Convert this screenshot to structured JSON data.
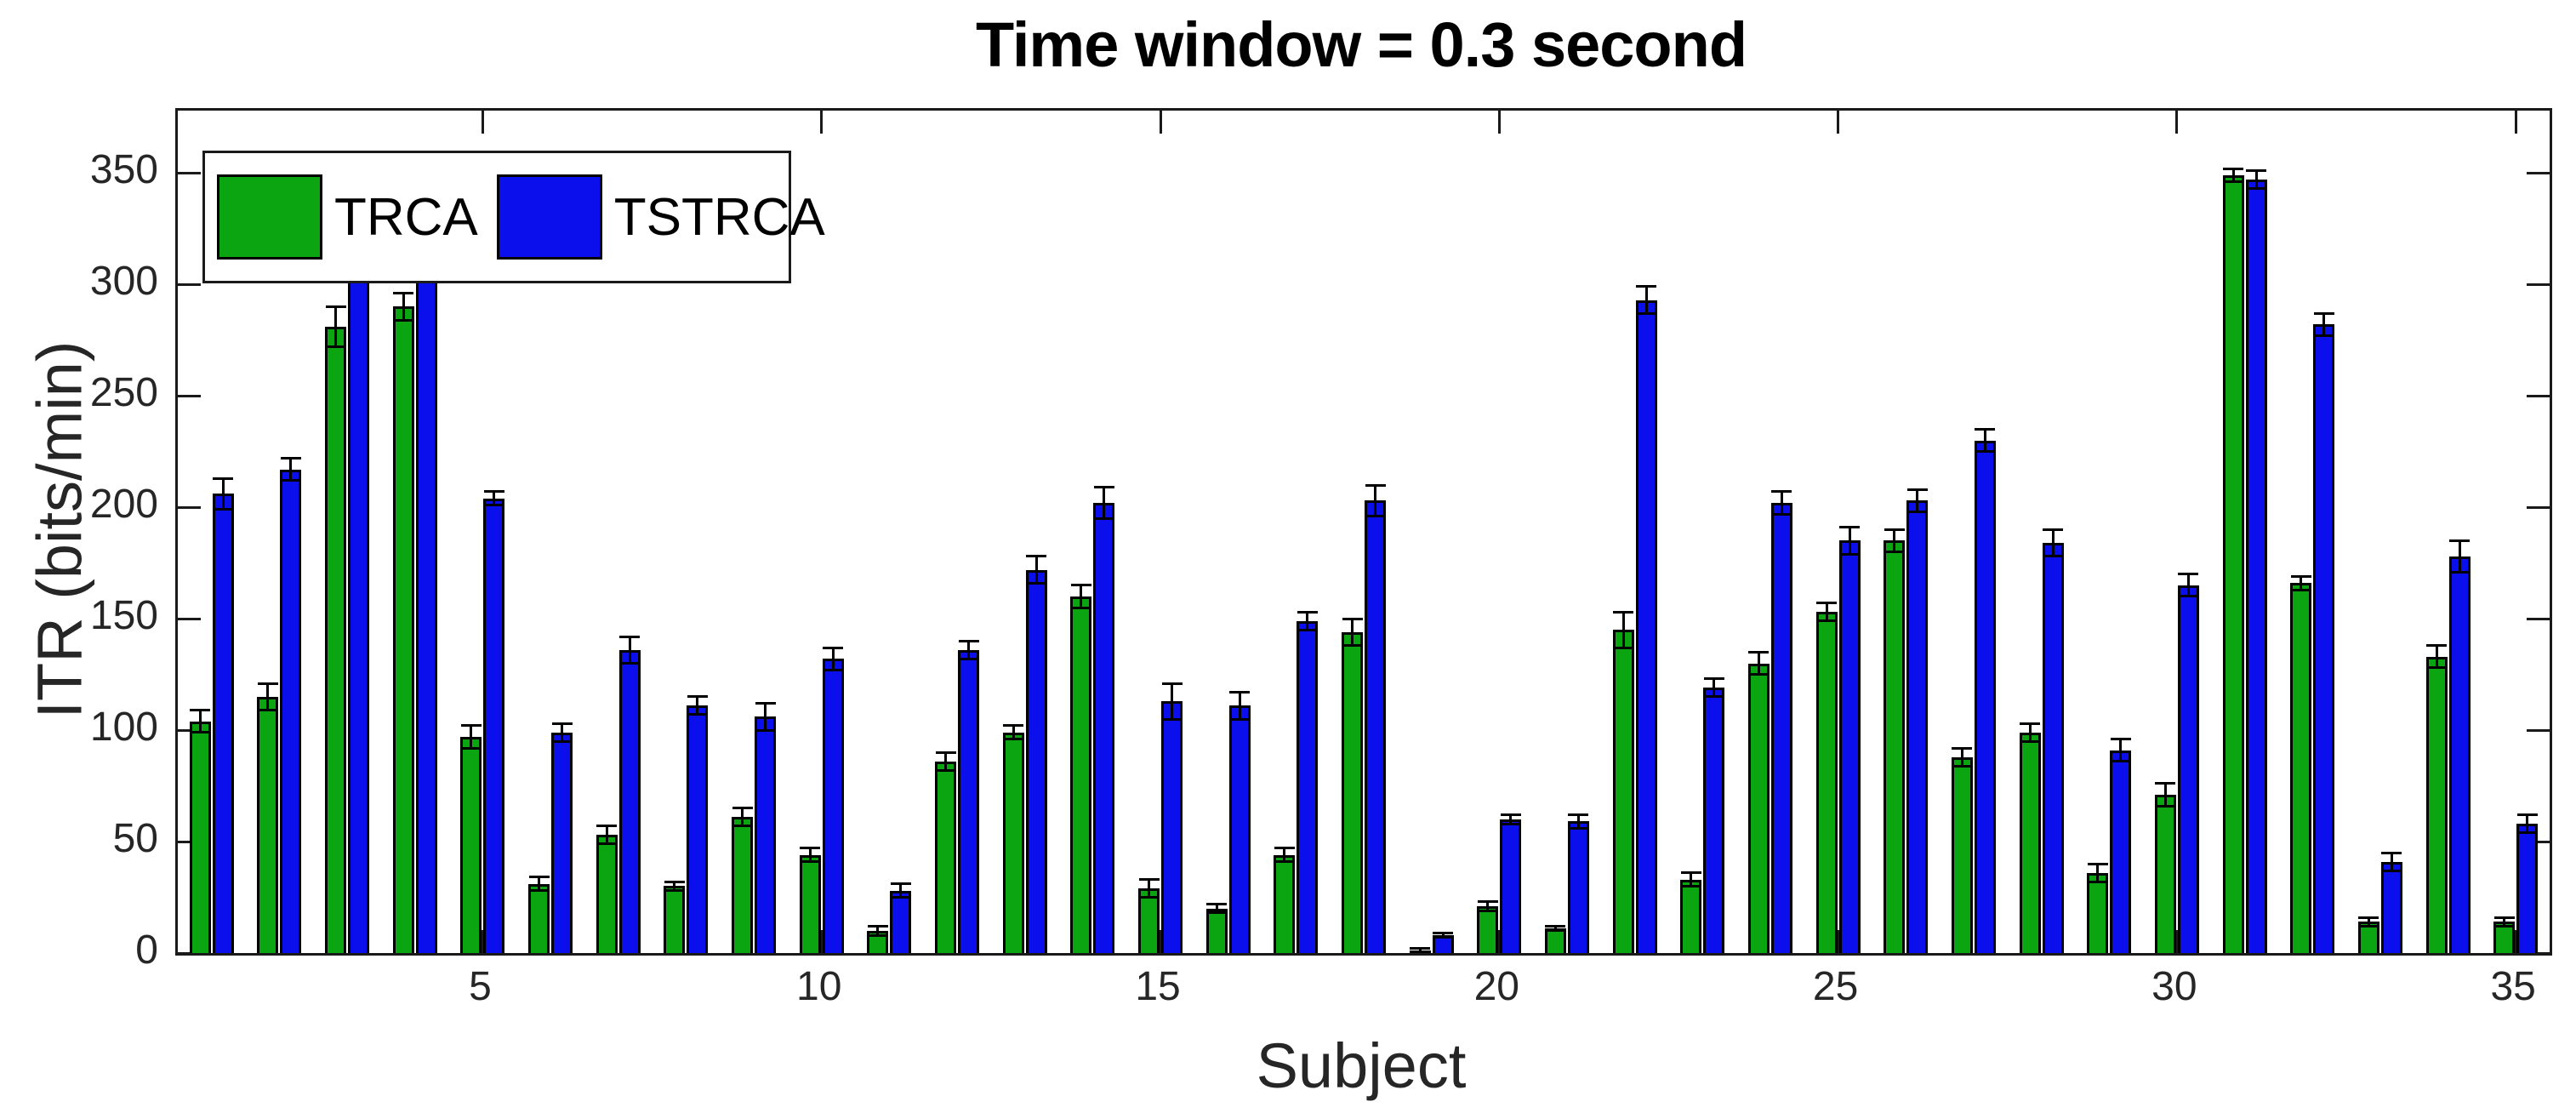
{
  "title": "Time window = 0.3 second",
  "y_axis_label": "ITR (bits/min)",
  "x_axis_label": "Subject",
  "legend": {
    "items": [
      {
        "label": "TRCA",
        "color": "#0CA512"
      },
      {
        "label": "TSTRCA",
        "color": "#0A0FEB"
      }
    ]
  },
  "colors": {
    "trca_green": "#0CA512",
    "tstrca_blue": "#0A0FEB",
    "bar_edge": "#000000",
    "axis": "#1a1a1a",
    "tick_text": "#262626",
    "background": "#ffffff"
  },
  "chart_data": {
    "type": "bar",
    "title": "Time window = 0.3 second",
    "xlabel": "Subject",
    "ylabel": "ITR (bits/min)",
    "categories": [
      1,
      2,
      3,
      4,
      5,
      6,
      7,
      8,
      9,
      10,
      11,
      12,
      13,
      14,
      15,
      16,
      17,
      18,
      19,
      20,
      21,
      22,
      23,
      24,
      25,
      26,
      27,
      28,
      29,
      30,
      31,
      32,
      33,
      34,
      35
    ],
    "series": [
      {
        "name": "TRCA",
        "color": "#0CA512",
        "values": [
          104,
          115,
          281,
          290,
          97,
          31,
          53,
          30,
          61,
          44,
          10,
          86,
          99,
          160,
          29,
          20,
          44,
          144,
          1,
          21,
          11,
          145,
          33,
          130,
          153,
          185,
          88,
          99,
          36,
          71,
          349,
          166,
          14,
          133,
          14
        ],
        "errors": [
          5,
          6,
          9,
          6,
          5,
          3,
          4,
          2,
          4,
          3,
          2,
          4,
          3,
          5,
          4,
          2,
          3,
          6,
          1,
          2,
          1,
          8,
          3,
          5,
          4,
          5,
          4,
          4,
          4,
          5,
          3,
          3,
          2,
          5,
          2
        ]
      },
      {
        "name": "TSTRCA",
        "color": "#0A0FEB",
        "values": [
          206,
          217,
          312,
          320,
          204,
          99,
          136,
          111,
          106,
          132,
          28,
          136,
          172,
          202,
          113,
          111,
          149,
          203,
          8,
          60,
          59,
          293,
          119,
          202,
          185,
          203,
          230,
          184,
          91,
          165,
          347,
          282,
          41,
          178,
          58
        ],
        "errors": [
          7,
          5,
          8,
          4,
          3,
          4,
          6,
          4,
          6,
          5,
          3,
          4,
          6,
          7,
          8,
          6,
          4,
          7,
          1,
          2,
          3,
          6,
          4,
          5,
          6,
          5,
          5,
          6,
          5,
          5,
          4,
          5,
          4,
          7,
          4
        ]
      }
    ],
    "ylim": [
      0,
      378
    ],
    "yticks": [
      0,
      50,
      100,
      150,
      200,
      250,
      300,
      350
    ],
    "xticks": [
      5,
      10,
      15,
      20,
      25,
      30,
      35
    ],
    "grid": false,
    "error_bars": true,
    "legend_position": "top-left-inside"
  }
}
